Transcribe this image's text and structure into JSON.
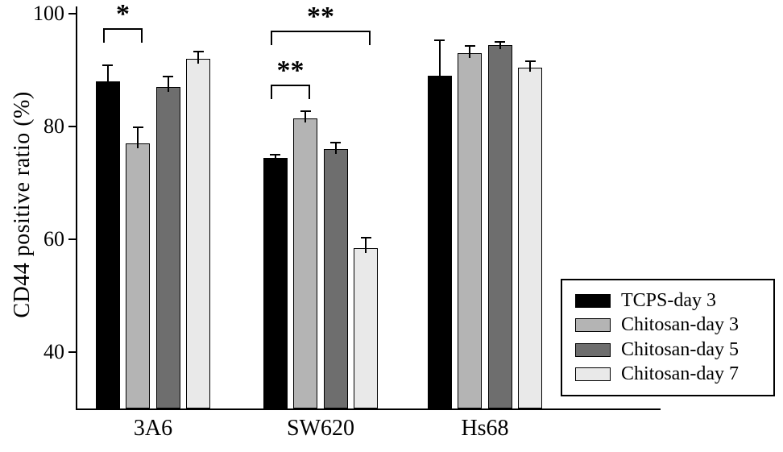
{
  "chart_data": {
    "type": "bar",
    "title": "",
    "xlabel": "",
    "ylabel": "CD44 positive ratio (%)",
    "ylim": [
      30,
      100
    ],
    "yticks": [
      40,
      60,
      80,
      100
    ],
    "grid": false,
    "legend_position": "lower right",
    "categories": [
      "3A6",
      "SW620",
      "Hs68"
    ],
    "series": [
      {
        "name": "TCPS-day 3",
        "color": "#000000",
        "values": [
          88,
          74.5,
          89
        ],
        "errors": [
          3,
          0.7,
          6.5
        ]
      },
      {
        "name": "Chitosan-day 3",
        "color": "#b4b4b4",
        "values": [
          77,
          81.5,
          93
        ],
        "errors": [
          3,
          1.3,
          1.5
        ]
      },
      {
        "name": "Chitosan-day 5",
        "color": "#6e6e6e",
        "values": [
          87,
          76,
          94.5
        ],
        "errors": [
          2,
          1.3,
          0.7
        ]
      },
      {
        "name": "Chitosan-day 7",
        "color": "#e9e9e9",
        "values": [
          92,
          58.5,
          90.5
        ],
        "errors": [
          1.5,
          2,
          1.2
        ]
      }
    ],
    "annotations": [
      {
        "category": 0,
        "bar_from": 0,
        "bar_to": 1,
        "value": 97.5,
        "label": "*"
      },
      {
        "category": 1,
        "bar_from": 0,
        "bar_to": 1,
        "value": 87.5,
        "label": "**"
      },
      {
        "category": 1,
        "bar_from": 0,
        "bar_to": 3,
        "value": 97,
        "label": "**"
      }
    ],
    "colors": {
      "axis": "#000000",
      "background": "#ffffff"
    }
  }
}
